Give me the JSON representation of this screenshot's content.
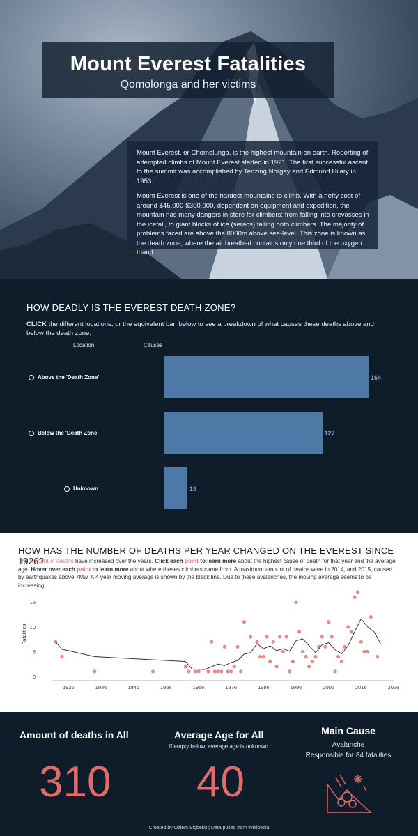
{
  "header": {
    "title": "Mount Everest Fatalities",
    "subtitle": "Qomolonga and her victims",
    "intro_p1": "Mount Everest, or Chomolunga, is the highest mountain on earth. Reporting of attempted climbs of Mount Everest started in 1921. The first successful ascent to the summit was accomplished by Tenzing Norgay and Edmund Hilary in 1953.",
    "intro_p2": "Mount Everest is one of the hardest mountains to climb. With a hefty cost of around $45,000-$300,000, dependent on equipment and expedition, the mountain has many dangers in store for climbers: from falling into crevasses in the icefall, to giant blocks of ice (seracs) falling onto climbers. The majority of problems faced are above the 8000m above sea-level. This zone is known as the death zone, where the air breathed contains only one third of the oxygen than t.."
  },
  "death_zone": {
    "heading": "HOW DEADLY IS THE EVEREST DEATH ZONE?",
    "instr_bold": "CLICK",
    "instr_rest": " the different locations, or the equivalent bar, below to see a breakdown of what causes these deaths above and below the death zone.",
    "col_location": "Location",
    "col_causes": "Causes"
  },
  "deaths_per_year": {
    "heading": "HOW HAS THE NUMBER OF DEATHS PER YEAR CHANGED ON THE EVEREST SINCE 1926?",
    "d1": "The ",
    "d2": "amount of deaths",
    "d3": " have increased over the years. ",
    "d4": "Click each ",
    "d5": "point",
    "d6": " to learn more",
    "d7": " about the highest cause of death for that year and the average age. ",
    "d8": "Hover over each ",
    "d9": "point",
    "d10": " to learn more",
    "d11": " about where theses climbers came from. A maximum amount of deaths were in 2014, and 2015, caused by earthquakes above 7Mw. A 4 year moving average is shown by the black line. Due to these avalanches, the moving average seems to be increasing."
  },
  "chart_data": [
    {
      "type": "bar",
      "orientation": "horizontal",
      "categories": [
        "Above the 'Death Zone'",
        "Below the 'Death Zone'",
        "Unknown"
      ],
      "values": [
        164,
        127,
        19
      ],
      "color": "#4e79a7"
    },
    {
      "type": "scatter",
      "ylabel": "Fatalities",
      "xlim": [
        1921,
        2026
      ],
      "ylim": [
        0,
        17
      ],
      "x_ticks": [
        1926,
        1936,
        1946,
        1956,
        1966,
        1976,
        1986,
        1996,
        2006,
        2016,
        2026
      ],
      "y_ticks": [
        0,
        5,
        10,
        15
      ],
      "point_color": "#e8898a",
      "line_color": "#333333",
      "points": [
        [
          1922,
          7
        ],
        [
          1924,
          4
        ],
        [
          1934,
          1
        ],
        [
          1952,
          1
        ],
        [
          1962,
          2
        ],
        [
          1963,
          1
        ],
        [
          1965,
          1
        ],
        [
          1966,
          1
        ],
        [
          1969,
          1
        ],
        [
          1970,
          7
        ],
        [
          1971,
          1
        ],
        [
          1972,
          1
        ],
        [
          1973,
          1
        ],
        [
          1974,
          6
        ],
        [
          1975,
          1
        ],
        [
          1976,
          1
        ],
        [
          1977,
          2
        ],
        [
          1978,
          6
        ],
        [
          1979,
          1
        ],
        [
          1980,
          11
        ],
        [
          1982,
          8
        ],
        [
          1984,
          7
        ],
        [
          1985,
          4
        ],
        [
          1986,
          4
        ],
        [
          1987,
          8
        ],
        [
          1988,
          3
        ],
        [
          1989,
          7
        ],
        [
          1990,
          2
        ],
        [
          1991,
          8
        ],
        [
          1992,
          5
        ],
        [
          1993,
          8
        ],
        [
          1994,
          1
        ],
        [
          1995,
          3
        ],
        [
          1996,
          15
        ],
        [
          1997,
          9
        ],
        [
          1998,
          5
        ],
        [
          1999,
          4
        ],
        [
          2000,
          2
        ],
        [
          2001,
          3
        ],
        [
          2002,
          4
        ],
        [
          2003,
          6
        ],
        [
          2004,
          8
        ],
        [
          2005,
          6
        ],
        [
          2006,
          11
        ],
        [
          2007,
          8
        ],
        [
          2008,
          1
        ],
        [
          2009,
          4
        ],
        [
          2010,
          3
        ],
        [
          2011,
          6
        ],
        [
          2012,
          10
        ],
        [
          2013,
          9
        ],
        [
          2014,
          16
        ],
        [
          2015,
          17
        ],
        [
          2016,
          7
        ],
        [
          2017,
          5
        ],
        [
          2018,
          5
        ],
        [
          2019,
          12
        ],
        [
          2021,
          4
        ]
      ],
      "moving_average": [
        [
          1922,
          7
        ],
        [
          1924,
          5.5
        ],
        [
          1934,
          4
        ],
        [
          1962,
          3
        ],
        [
          1964,
          1.5
        ],
        [
          1968,
          1.4
        ],
        [
          1972,
          2.5
        ],
        [
          1974,
          2.2
        ],
        [
          1976,
          2.8
        ],
        [
          1978,
          3.2
        ],
        [
          1980,
          4.5
        ],
        [
          1982,
          4.8
        ],
        [
          1984,
          6.6
        ],
        [
          1986,
          5.6
        ],
        [
          1988,
          6.2
        ],
        [
          1990,
          5.2
        ],
        [
          1992,
          5.6
        ],
        [
          1994,
          5.1
        ],
        [
          1996,
          7.2
        ],
        [
          1998,
          7.6
        ],
        [
          2000,
          6.2
        ],
        [
          2002,
          4.8
        ],
        [
          2004,
          6.4
        ],
        [
          2006,
          6.8
        ],
        [
          2008,
          5.4
        ],
        [
          2010,
          4.6
        ],
        [
          2012,
          6.2
        ],
        [
          2014,
          9
        ],
        [
          2016,
          11.6
        ],
        [
          2018,
          10
        ],
        [
          2020,
          9
        ],
        [
          2022,
          6.6
        ]
      ]
    }
  ],
  "kpis": {
    "deaths_title": "Amount of deaths in All",
    "deaths_value": "310",
    "age_title": "Average Age for All",
    "age_sub": "If empty below, average age is unknown.",
    "age_value": "40",
    "cause_title": "Main Cause",
    "cause_name": "Avalanche",
    "cause_sub": "Responsible for 84 fatalities",
    "cause_icon": "avalanche-icon",
    "accent": "#e06b6b"
  },
  "footer": "Created by Ozlem Sigbeku | Data pulled from Wikipedia"
}
